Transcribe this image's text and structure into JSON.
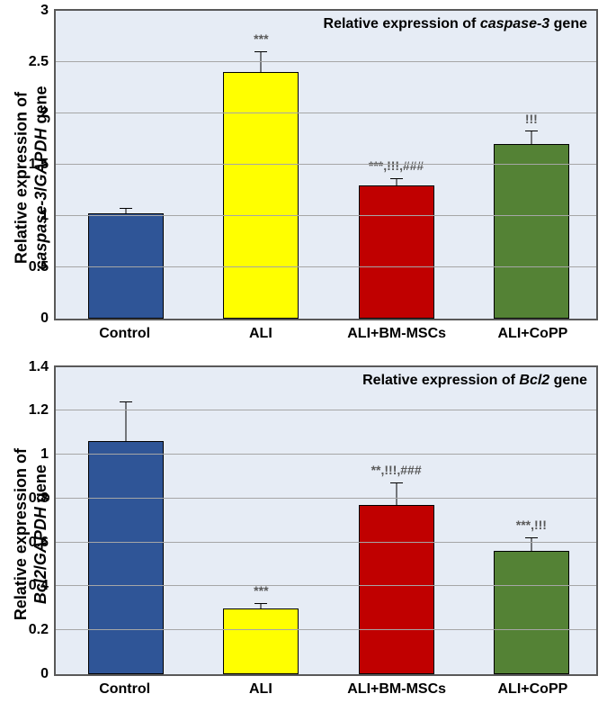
{
  "background_color": "#ffffff",
  "plot_background": "#e6ecf5",
  "grid_color": "#a6a6a6",
  "border_color": "#595959",
  "sig_text_color": "#595959",
  "font_family": "Arial, sans-serif",
  "title_fontsize": 16,
  "label_fontsize": 16,
  "ylabel_fontsize": 18,
  "sig_fontsize": 14,
  "bar_width_pct": 14,
  "bar_positions_pct": [
    13,
    38,
    63,
    88
  ],
  "categories": [
    "Control",
    "ALI",
    "ALI+BM-MSCs",
    "ALI+CoPP"
  ],
  "bar_colors": [
    "#2f5597",
    "#ffff00",
    "#c00000",
    "#548235"
  ],
  "panels": [
    {
      "id": "caspase3",
      "title_prefix": "Relative expression of ",
      "title_italic": "caspase-3",
      "title_suffix": " gene",
      "ylabel_line1": "Relative expression of",
      "ylabel_line2_italic1": "caspase-3",
      "ylabel_line2_mid": "/",
      "ylabel_line2_italic2": "GAPDH",
      "ylabel_line2_suffix": " gene",
      "ylim": [
        0,
        3
      ],
      "ytick_step": 0.5,
      "yticks": [
        0,
        0.5,
        1,
        1.5,
        2,
        2.5,
        3
      ],
      "values": [
        1.02,
        2.4,
        1.3,
        1.7
      ],
      "errors": [
        0.05,
        0.2,
        0.06,
        0.12
      ],
      "sig_labels": [
        "",
        "***",
        "***,!!!,###",
        "!!!"
      ]
    },
    {
      "id": "bcl2",
      "title_prefix": "Relative expression of ",
      "title_italic": "Bcl2",
      "title_suffix": " gene",
      "ylabel_line1": "Relative expression of",
      "ylabel_line2_italic1": "Bcl2",
      "ylabel_line2_mid": "/",
      "ylabel_line2_italic2": "GAPDH",
      "ylabel_line2_suffix": " gene",
      "ylim": [
        0,
        1.4
      ],
      "ytick_step": 0.2,
      "yticks": [
        0,
        0.2,
        0.4,
        0.6,
        0.8,
        1,
        1.2,
        1.4
      ],
      "values": [
        1.06,
        0.3,
        0.77,
        0.56
      ],
      "errors": [
        0.18,
        0.02,
        0.1,
        0.06
      ],
      "sig_labels": [
        "",
        "***",
        "**,!!!,###",
        "***,!!!"
      ]
    }
  ]
}
